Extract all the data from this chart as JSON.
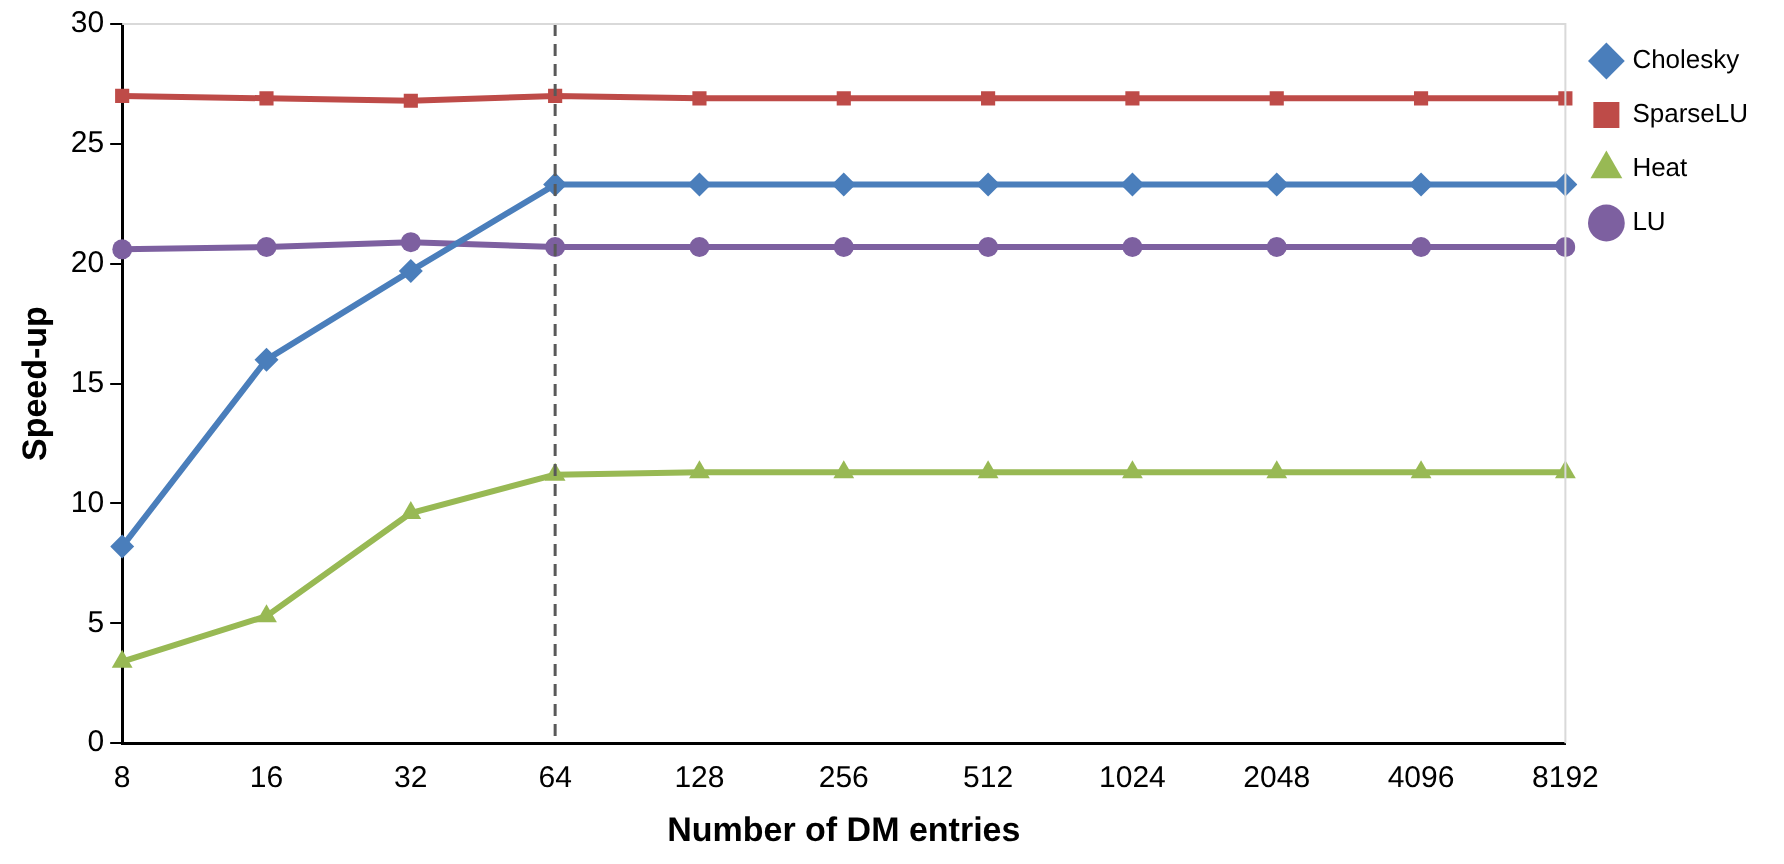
{
  "chart_data": {
    "type": "line",
    "xlabel": "Number of DM entries",
    "ylabel": "Speed-up",
    "categories": [
      "8",
      "16",
      "32",
      "64",
      "128",
      "256",
      "512",
      "1024",
      "2048",
      "4096",
      "8192"
    ],
    "ylim": [
      0,
      30
    ],
    "yticks": [
      0,
      5,
      10,
      15,
      20,
      25,
      30
    ],
    "grid": false,
    "legend": "right",
    "line_style": "solid",
    "series": [
      {
        "name": "Cholesky",
        "color": "#4a7ebb",
        "marker": "diamond",
        "values": [
          8.2,
          16.0,
          19.7,
          23.3,
          23.3,
          23.3,
          23.3,
          23.3,
          23.3,
          23.3,
          23.3
        ]
      },
      {
        "name": "SparseLU",
        "color": "#be4b48",
        "marker": "square",
        "values": [
          27.0,
          26.9,
          26.8,
          27.0,
          26.9,
          26.9,
          26.9,
          26.9,
          26.9,
          26.9,
          26.9
        ]
      },
      {
        "name": "Heat",
        "color": "#98b954",
        "marker": "triangle",
        "values": [
          3.4,
          5.3,
          9.6,
          11.2,
          11.3,
          11.3,
          11.3,
          11.3,
          11.3,
          11.3,
          11.3
        ]
      },
      {
        "name": "LU",
        "color": "#7d60a0",
        "marker": "circle",
        "values": [
          20.6,
          20.7,
          20.9,
          20.7,
          20.7,
          20.7,
          20.7,
          20.7,
          20.7,
          20.7,
          20.7
        ]
      }
    ],
    "ref_lines": [
      {
        "axis": "x",
        "value": "64",
        "color": "#595959",
        "line_style": "dashed"
      }
    ]
  }
}
